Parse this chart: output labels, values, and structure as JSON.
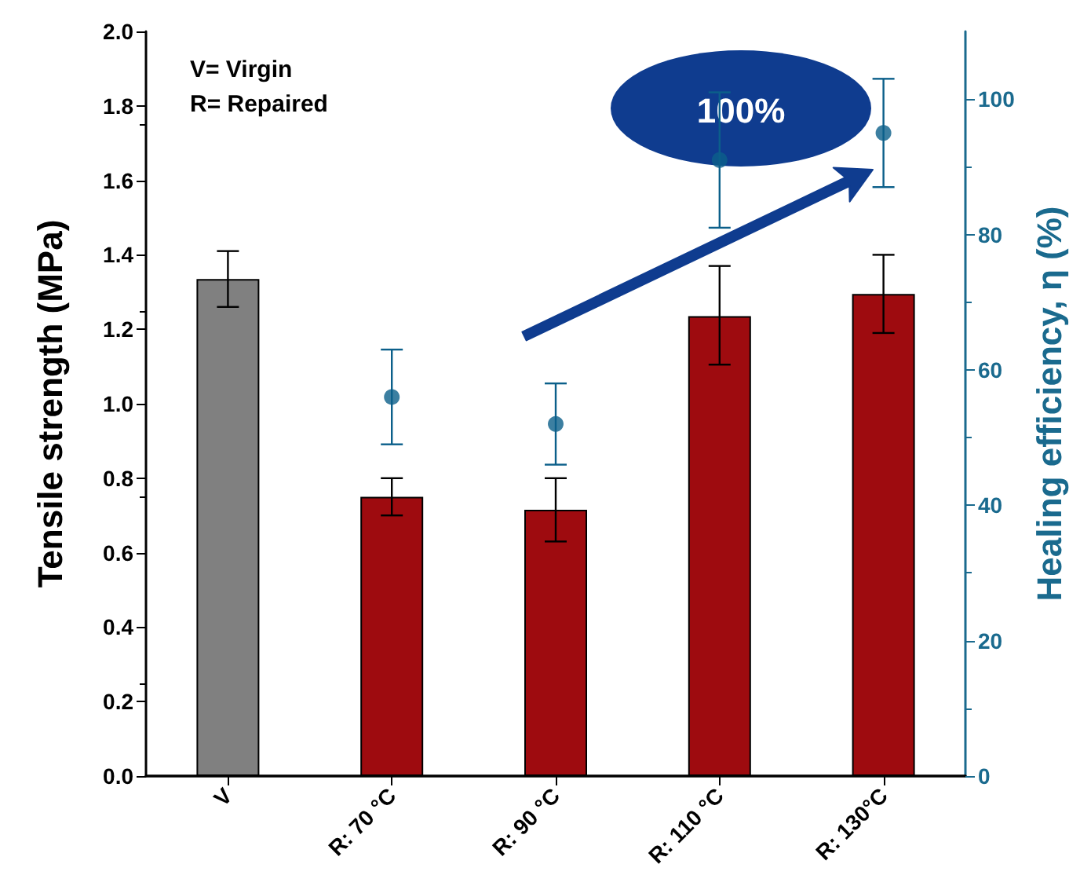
{
  "chart_data": {
    "type": "bar",
    "categories": [
      "V",
      "R: 70 °C",
      "R: 90 °C",
      "R: 110 °C",
      "R: 130°C"
    ],
    "series": [
      {
        "colors": [
          "#808080",
          "#9e0b0f",
          "#9e0b0f",
          "#9e0b0f",
          "#9e0b0f"
        ],
        "values": [
          1.335,
          0.75,
          0.715,
          1.235,
          1.295
        ],
        "errors": [
          [
            1.26,
            1.41
          ],
          [
            0.7,
            0.8
          ],
          [
            0.63,
            0.8
          ],
          [
            1.105,
            1.37
          ],
          [
            1.19,
            1.4
          ]
        ]
      },
      {
        "type": "scatter",
        "axis": "y2",
        "color": "#0b5f8a",
        "marker": "circle",
        "x": [
          "R: 70 °C",
          "R: 90 °C",
          "R: 110 °C",
          "R: 130°C"
        ],
        "values": [
          56,
          52,
          91,
          95
        ],
        "errors": [
          [
            49,
            63
          ],
          [
            46,
            58
          ],
          [
            81,
            101
          ],
          [
            87,
            103
          ]
        ]
      }
    ],
    "ylabel": "Tensile strength (MPa)",
    "y2label": "Healing efficiency, η (%)",
    "ylim": [
      0,
      2.0
    ],
    "yticks": [
      {
        "value": 0,
        "label": "0.0"
      },
      {
        "value": 0.2,
        "label": "0.2"
      },
      {
        "value": 0.4,
        "label": "0.4"
      },
      {
        "value": 0.6,
        "label": "0.6"
      },
      {
        "value": 0.8,
        "label": "0.8"
      },
      {
        "value": 1.0,
        "label": "1.0"
      },
      {
        "value": 1.2,
        "label": "1.2"
      },
      {
        "value": 1.4,
        "label": "1.4"
      },
      {
        "value": 1.6,
        "label": "1.6"
      },
      {
        "value": 1.8,
        "label": "1.8"
      },
      {
        "value": 2.0,
        "label": "2.0"
      }
    ],
    "y2lim": [
      0,
      110
    ],
    "y2ticks": [
      0,
      20,
      40,
      60,
      80,
      100
    ],
    "annotations": [
      "V= Virgin",
      "R= Repaired",
      "100%"
    ],
    "grid": false
  }
}
